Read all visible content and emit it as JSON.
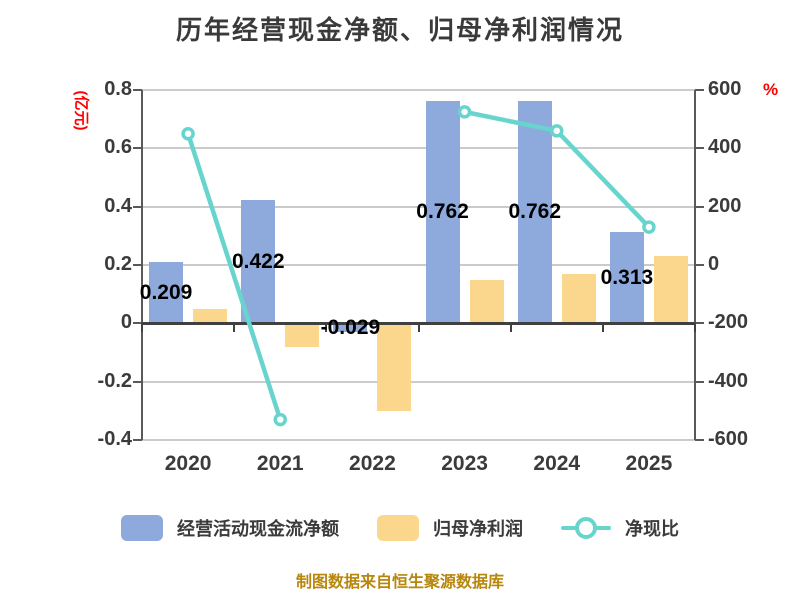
{
  "title": "历年经营现金净额、归母净利润情况",
  "footer": "制图数据来自恒生聚源数据库",
  "legend": [
    {
      "label": "经营活动现金流净额",
      "color": "#8EA9DB"
    },
    {
      "label": "归母净利润",
      "color": "#FBD78E"
    },
    {
      "label": "净现比",
      "color": "#68D4CE"
    }
  ],
  "chart_data": {
    "type": "bar+line combo, dual axis",
    "categories": [
      "2020",
      "2021",
      "2022",
      "2023",
      "2024",
      "2025"
    ],
    "series": [
      {
        "name": "经营活动现金流净额",
        "type": "bar",
        "axis": "left",
        "color": "#8EA9DB",
        "values": [
          0.209,
          0.422,
          -0.029,
          0.762,
          0.762,
          0.313
        ],
        "data_labels": [
          "0.209",
          "0.422",
          "-0.029",
          "0.762",
          "0.762",
          "0.313"
        ]
      },
      {
        "name": "归母净利润",
        "type": "bar",
        "axis": "left",
        "color": "#FBD78E",
        "values": [
          0.05,
          -0.08,
          -0.3,
          0.15,
          0.17,
          0.23
        ]
      },
      {
        "name": "净现比",
        "type": "line",
        "axis": "right",
        "color": "#68D4CE",
        "marker": "white-circle",
        "values": [
          450,
          -530,
          null,
          525,
          460,
          130
        ]
      }
    ],
    "left_axis": {
      "unit": "(亿元)",
      "unit_color": "#FF0000",
      "ticks": [
        "0.8",
        "0.6",
        "0.4",
        "0.2",
        "0",
        "-0.2",
        "-0.4"
      ],
      "min": -0.4,
      "max": 0.8
    },
    "right_axis": {
      "unit": "%",
      "unit_color": "#FF0000",
      "ticks": [
        "600",
        "400",
        "200",
        "0",
        "-200",
        "-400",
        "-600"
      ],
      "min": -600,
      "max": 600
    },
    "grid": true,
    "gridline_color": "#CBCBCB",
    "zero_line_color": "#404040",
    "legend_position": "bottom"
  }
}
